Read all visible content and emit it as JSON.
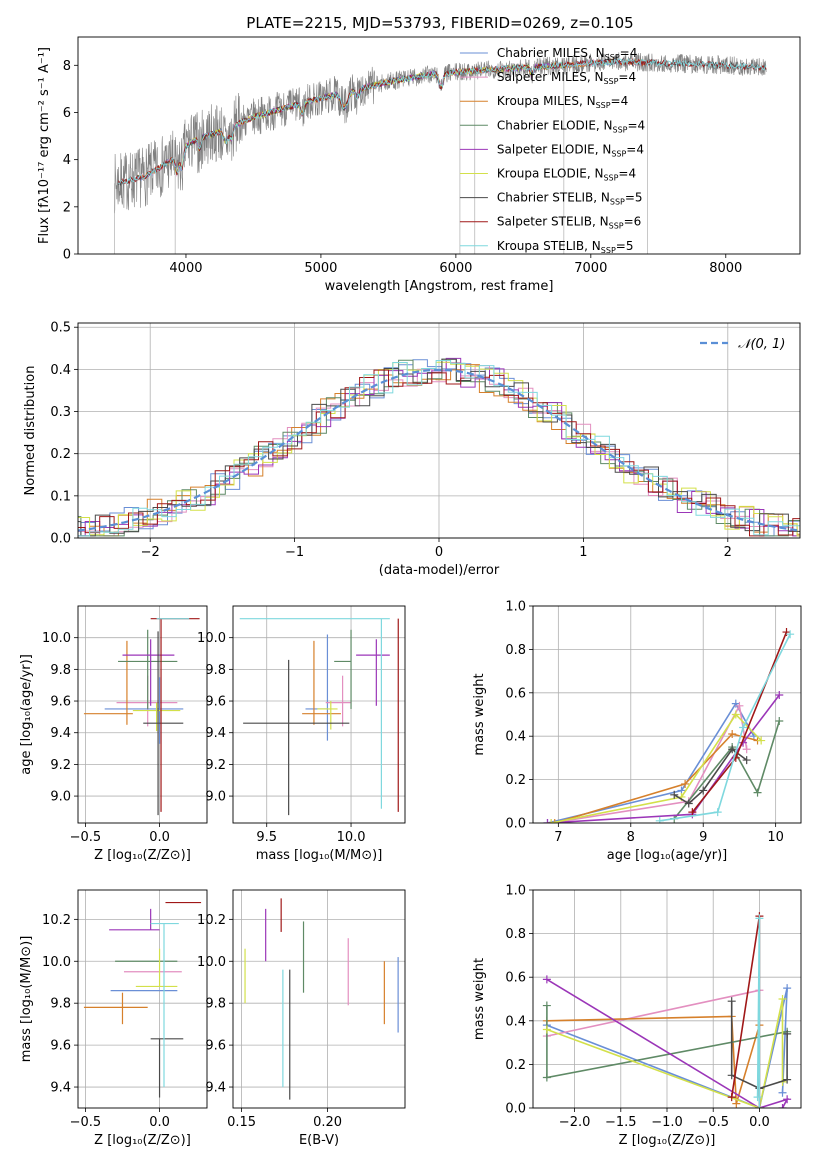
{
  "figure_title": "PLATE=2215, MJD=53793, FIBERID=0269, z=0.105",
  "colors": {
    "Chabrier MILES": "#6a8fd6",
    "Salpeter MILES": "#e38fc0",
    "Kroupa MILES": "#d6802b",
    "Chabrier ELODIE": "#5f8a66",
    "Salpeter ELODIE": "#9b36b8",
    "Kroupa ELODIE": "#d3e04a",
    "Chabrier STELIB": "#4a4a4a",
    "Salpeter STELIB": "#a01818",
    "Kroupa STELIB": "#7fd8de",
    "data": "#808080",
    "normal": "#5a8fd6"
  },
  "chart_data": [
    {
      "id": "spectrum",
      "type": "line",
      "title": "PLATE=2215, MJD=53793, FIBERID=0269, z=0.105",
      "xlabel": "wavelength [Angstrom, rest frame]",
      "ylabel": "Flux [fλ10⁻¹⁷ erg cm⁻² s⁻¹ A⁻¹]",
      "xlim": [
        3200,
        8550
      ],
      "ylim": [
        0,
        9.2
      ],
      "xticks": [
        4000,
        5000,
        6000,
        7000,
        8000
      ],
      "yticks": [
        0,
        2,
        4,
        6,
        8
      ],
      "grid": false,
      "legend_position": "top-right",
      "legend": [
        "Chabrier MILES, NSSP=4",
        "Salpeter MILES, NSSP=4",
        "Kroupa MILES, NSSP=4",
        "Chabrier ELODIE, NSSP=4",
        "Salpeter ELODIE, NSSP=4",
        "Kroupa ELODIE, NSSP=4",
        "Chabrier STELIB, NSSP=5",
        "Salpeter STELIB, NSSP=6",
        "Kroupa STELIB, NSSP=5"
      ],
      "continuum": {
        "x": [
          3500,
          3700,
          3900,
          4000,
          4100,
          4300,
          4500,
          4800,
          5000,
          5200,
          5500,
          5800,
          6000,
          6200,
          6500,
          6800,
          7000,
          7200,
          7500,
          7800,
          8000,
          8300
        ],
        "y": [
          3.0,
          3.3,
          4.0,
          4.6,
          4.9,
          5.3,
          5.8,
          6.3,
          6.6,
          6.9,
          7.3,
          7.6,
          7.7,
          7.8,
          7.9,
          8.0,
          8.1,
          8.15,
          8.1,
          8.05,
          8.0,
          7.9
        ]
      }
    },
    {
      "id": "residuals",
      "type": "histogram",
      "xlabel": "(data-model)/error",
      "ylabel": "Normed distribution",
      "xlim": [
        -2.5,
        2.5
      ],
      "ylim": [
        0,
        0.51
      ],
      "xticks": [
        -2,
        -1,
        0,
        1,
        2
      ],
      "yticks": [
        0.0,
        0.1,
        0.2,
        0.3,
        0.4,
        0.5
      ],
      "grid": true,
      "legend_position": "top-right",
      "legend": [
        "𝒩(0, 1)"
      ],
      "bin_width": 0.1
    },
    {
      "id": "z_age",
      "type": "errorbar",
      "xlabel": "Z [log₁₀(Z/Z⊙)]",
      "ylabel": "age  [log₁₀(age/yr)]",
      "xlim": [
        -0.55,
        0.32
      ],
      "ylim": [
        8.83,
        10.2
      ],
      "xticks": [
        -0.5,
        0.0
      ],
      "yticks": [
        9.0,
        9.2,
        9.4,
        9.6,
        9.8,
        10.0
      ],
      "grid": true,
      "points": [
        {
          "x": -0.08,
          "y": 9.59,
          "xerr": [
            0.21,
            0.2
          ],
          "yerr": [
            0.15,
            0.17
          ],
          "series": "Salpeter MILES"
        },
        {
          "x": 0.0,
          "y": 9.55,
          "xerr": [
            0.37,
            0.16
          ],
          "yerr": [
            0.22,
            0.2
          ],
          "series": "Chabrier MILES"
        },
        {
          "x": -0.22,
          "y": 9.52,
          "xerr": [
            0.29,
            0.04
          ],
          "yerr": [
            0.07,
            0.46
          ],
          "series": "Kroupa MILES"
        },
        {
          "x": -0.08,
          "y": 9.85,
          "xerr": [
            0.2,
            0.2
          ],
          "yerr": [
            0.3,
            0.2
          ],
          "series": "Chabrier ELODIE"
        },
        {
          "x": -0.06,
          "y": 9.89,
          "xerr": [
            0.19,
            0.16
          ],
          "yerr": [
            0.32,
            0.1
          ],
          "series": "Salpeter ELODIE"
        },
        {
          "x": -0.02,
          "y": 9.54,
          "xerr": [
            0.16,
            0.16
          ],
          "yerr": [
            0.13,
            0.05
          ],
          "series": "Kroupa ELODIE"
        },
        {
          "x": -0.01,
          "y": 9.46,
          "xerr": [
            0.1,
            0.17
          ],
          "yerr": [
            0.58,
            0.58
          ],
          "series": "Chabrier STELIB"
        },
        {
          "x": 0.01,
          "y": 10.12,
          "xerr": [
            0.07,
            0.26
          ],
          "yerr": [
            1.22,
            0.0
          ],
          "series": "Salpeter STELIB"
        },
        {
          "x": 0.08,
          "y": 10.12,
          "xerr": [
            0.1,
            0.12
          ],
          "yerr": [
            0.0,
            0.0
          ],
          "series": "Kroupa STELIB"
        }
      ]
    },
    {
      "id": "mass_age",
      "type": "errorbar",
      "xlabel": "mass [log₁₀(M/M⊙)]",
      "ylabel": "",
      "xlim": [
        9.3,
        10.32
      ],
      "ylim": [
        8.83,
        10.2
      ],
      "xticks": [
        9.5,
        10.0
      ],
      "yticks": [
        9.0,
        9.2,
        9.4,
        9.6,
        9.8,
        10.0
      ],
      "grid": true,
      "points": [
        {
          "x": 9.86,
          "y": 9.55,
          "xerr": [
            0.13,
            0.0
          ],
          "yerr": [
            0.2,
            0.47
          ],
          "series": "Chabrier MILES"
        },
        {
          "x": 9.95,
          "y": 9.59,
          "xerr": [
            0.1,
            0.05
          ],
          "yerr": [
            0.15,
            0.17
          ],
          "series": "Salpeter MILES"
        },
        {
          "x": 9.78,
          "y": 9.52,
          "xerr": [
            0.07,
            0.16
          ],
          "yerr": [
            0.07,
            0.46
          ],
          "series": "Kroupa MILES"
        },
        {
          "x": 10.0,
          "y": 9.85,
          "xerr": [
            0.1,
            0.0
          ],
          "yerr": [
            0.3,
            0.2
          ],
          "series": "Chabrier ELODIE"
        },
        {
          "x": 10.15,
          "y": 9.89,
          "xerr": [
            0.12,
            0.08
          ],
          "yerr": [
            0.32,
            0.1
          ],
          "series": "Salpeter ELODIE"
        },
        {
          "x": 9.88,
          "y": 9.55,
          "xerr": [
            0.08,
            0.04
          ],
          "yerr": [
            0.13,
            0.05
          ],
          "series": "Kroupa ELODIE"
        },
        {
          "x": 9.63,
          "y": 9.46,
          "xerr": [
            0.27,
            0.36
          ],
          "yerr": [
            0.58,
            0.4
          ],
          "series": "Chabrier STELIB"
        },
        {
          "x": 10.28,
          "y": 10.12,
          "xerr": [
            0.0,
            0.0
          ],
          "yerr": [
            1.22,
            0.0
          ],
          "series": "Salpeter STELIB"
        },
        {
          "x": 10.18,
          "y": 10.12,
          "xerr": [
            0.84,
            0.05
          ],
          "yerr": [
            1.2,
            0.0
          ],
          "series": "Kroupa STELIB"
        }
      ]
    },
    {
      "id": "age_weight",
      "type": "line",
      "xlabel": "age  [log₁₀(age/yr)]",
      "ylabel": "mass weight",
      "xlim": [
        6.65,
        10.35
      ],
      "ylim": [
        0,
        1.0
      ],
      "xticks": [
        7,
        8,
        9,
        10
      ],
      "yticks": [
        0.0,
        0.2,
        0.4,
        0.6,
        0.8,
        1.0
      ],
      "grid": true,
      "series": [
        {
          "name": "Chabrier MILES",
          "x": [
            6.85,
            8.7,
            9.45,
            9.7
          ],
          "y": [
            0.0,
            0.15,
            0.55,
            0.4
          ]
        },
        {
          "name": "Salpeter MILES",
          "x": [
            6.9,
            8.8,
            9.5,
            9.6
          ],
          "y": [
            0.0,
            0.1,
            0.54,
            0.34
          ]
        },
        {
          "name": "Kroupa MILES",
          "x": [
            6.95,
            8.75,
            9.4,
            9.75
          ],
          "y": [
            0.0,
            0.18,
            0.41,
            0.38
          ]
        },
        {
          "name": "Chabrier ELODIE",
          "x": [
            8.6,
            9.4,
            9.75,
            10.05
          ],
          "y": [
            0.02,
            0.35,
            0.14,
            0.47
          ]
        },
        {
          "name": "Salpeter ELODIE",
          "x": [
            6.85,
            8.85,
            9.55,
            10.05
          ],
          "y": [
            0.0,
            0.04,
            0.37,
            0.59
          ]
        },
        {
          "name": "Kroupa ELODIE",
          "x": [
            6.9,
            8.7,
            9.45,
            9.8
          ],
          "y": [
            0.0,
            0.12,
            0.5,
            0.38
          ]
        },
        {
          "name": "Chabrier STELIB",
          "x": [
            8.6,
            8.8,
            9.0,
            9.4,
            9.6
          ],
          "y": [
            0.13,
            0.09,
            0.15,
            0.34,
            0.29
          ]
        },
        {
          "name": "Salpeter STELIB",
          "x": [
            8.85,
            9.45,
            10.15
          ],
          "y": [
            0.05,
            0.3,
            0.88
          ]
        },
        {
          "name": "Kroupa STELIB",
          "x": [
            8.4,
            9.2,
            9.55,
            10.2
          ],
          "y": [
            0.01,
            0.05,
            0.44,
            0.87
          ]
        }
      ]
    },
    {
      "id": "z_mass",
      "type": "errorbar",
      "xlabel": "Z [log₁₀(Z/Z⊙)]",
      "ylabel": "mass [log₁₀(M/M⊙)]",
      "xlim": [
        -0.55,
        0.32
      ],
      "ylim": [
        9.3,
        10.34
      ],
      "xticks": [
        -0.5,
        0.0
      ],
      "yticks": [
        9.4,
        9.6,
        9.8,
        10.0,
        10.2
      ],
      "grid": true,
      "points": [
        {
          "x": 0.0,
          "y": 9.86,
          "xerr": [
            0.33,
            0.12
          ],
          "yerr": [
            0.0,
            0.0
          ],
          "series": "Chabrier MILES"
        },
        {
          "x": -0.02,
          "y": 9.95,
          "xerr": [
            0.22,
            0.17
          ],
          "yerr": [
            0.0,
            0.0
          ],
          "series": "Salpeter MILES"
        },
        {
          "x": -0.25,
          "y": 9.78,
          "xerr": [
            0.26,
            0.17
          ],
          "yerr": [
            0.08,
            0.07
          ],
          "series": "Kroupa MILES"
        },
        {
          "x": -0.08,
          "y": 10.0,
          "xerr": [
            0.22,
            0.2
          ],
          "yerr": [
            0.0,
            0.0
          ],
          "series": "Chabrier ELODIE"
        },
        {
          "x": -0.06,
          "y": 10.15,
          "xerr": [
            0.28,
            0.06
          ],
          "yerr": [
            0.0,
            0.1
          ],
          "series": "Salpeter ELODIE"
        },
        {
          "x": 0.0,
          "y": 9.88,
          "xerr": [
            0.16,
            0.12
          ],
          "yerr": [
            0.0,
            0.18
          ],
          "series": "Kroupa ELODIE"
        },
        {
          "x": 0.0,
          "y": 9.63,
          "xerr": [
            0.06,
            0.16
          ],
          "yerr": [
            0.28,
            0.0
          ],
          "series": "Chabrier STELIB"
        },
        {
          "x": 0.09,
          "y": 10.28,
          "xerr": [
            0.05,
            0.19
          ],
          "yerr": [
            0.0,
            0.0
          ],
          "series": "Salpeter STELIB"
        },
        {
          "x": 0.03,
          "y": 10.18,
          "xerr": [
            0.09,
            0.1
          ],
          "yerr": [
            0.78,
            0.0
          ],
          "series": "Kroupa STELIB"
        }
      ]
    },
    {
      "id": "ebv_mass",
      "type": "errorbar",
      "xlabel": "E(B-V)",
      "ylabel": "",
      "xlim": [
        0.145,
        0.245
      ],
      "ylim": [
        9.3,
        10.34
      ],
      "xticks": [
        0.15,
        0.2
      ],
      "yticks": [
        9.4,
        9.6,
        9.8,
        10.0,
        10.2
      ],
      "grid": true,
      "points": [
        {
          "x": 0.152,
          "y": 9.93,
          "yerr": [
            0.13,
            0.13
          ],
          "series": "Kroupa ELODIE"
        },
        {
          "x": 0.164,
          "y": 10.12,
          "yerr": [
            0.12,
            0.13
          ],
          "series": "Salpeter ELODIE"
        },
        {
          "x": 0.173,
          "y": 10.14,
          "yerr": [
            0.0,
            0.16
          ],
          "series": "Salpeter STELIB"
        },
        {
          "x": 0.174,
          "y": 9.86,
          "yerr": [
            0.46,
            0.1
          ],
          "series": "Kroupa STELIB"
        },
        {
          "x": 0.178,
          "y": 9.75,
          "yerr": [
            0.41,
            0.21
          ],
          "series": "Chabrier STELIB"
        },
        {
          "x": 0.186,
          "y": 10.05,
          "yerr": [
            0.2,
            0.14
          ],
          "series": "Chabrier ELODIE"
        },
        {
          "x": 0.212,
          "y": 9.95,
          "yerr": [
            0.16,
            0.16
          ],
          "series": "Salpeter MILES"
        },
        {
          "x": 0.233,
          "y": 9.85,
          "yerr": [
            0.15,
            0.15
          ],
          "series": "Kroupa MILES"
        },
        {
          "x": 0.241,
          "y": 9.84,
          "yerr": [
            0.18,
            0.18
          ],
          "series": "Chabrier MILES"
        }
      ]
    },
    {
      "id": "z_weight",
      "type": "line",
      "xlabel": "Z [log₁₀(Z/Z⊙)]",
      "ylabel": "mass weight",
      "xlim": [
        -2.45,
        0.45
      ],
      "ylim": [
        0,
        1.0
      ],
      "xticks": [
        -2.0,
        -1.5,
        -1.0,
        -0.5,
        0.0
      ],
      "yticks": [
        0.0,
        0.2,
        0.4,
        0.6,
        0.8,
        1.0
      ],
      "grid": true,
      "series": [
        {
          "name": "Chabrier MILES",
          "x": [
            -2.3,
            0.0,
            0.3,
            0.25
          ],
          "y": [
            0.38,
            0.0,
            0.55,
            0.07
          ]
        },
        {
          "name": "Salpeter MILES",
          "x": [
            -2.3,
            0.0
          ],
          "y": [
            0.33,
            0.54
          ]
        },
        {
          "name": "Kroupa MILES",
          "x": [
            -2.3,
            -0.3,
            -0.25,
            0.0
          ],
          "y": [
            0.4,
            0.42,
            0.02,
            0.38
          ]
        },
        {
          "name": "Chabrier ELODIE",
          "x": [
            -2.3,
            -2.3,
            0.3
          ],
          "y": [
            0.47,
            0.14,
            0.35
          ]
        },
        {
          "name": "Salpeter ELODIE",
          "x": [
            -2.3,
            0.0,
            0.3,
            0.25
          ],
          "y": [
            0.59,
            0.0,
            0.04,
            0.0
          ]
        },
        {
          "name": "Kroupa ELODIE",
          "x": [
            -2.3,
            0.0,
            0.25,
            0.25
          ],
          "y": [
            0.36,
            0.0,
            0.5,
            0.12
          ]
        },
        {
          "name": "Chabrier STELIB",
          "x": [
            -0.3,
            -0.3,
            0.0,
            0.3,
            0.3
          ],
          "y": [
            0.49,
            0.15,
            0.09,
            0.13,
            0.34
          ]
        },
        {
          "name": "Salpeter STELIB",
          "x": [
            -0.3,
            0.0,
            0.0
          ],
          "y": [
            0.05,
            0.88,
            0.0
          ]
        },
        {
          "name": "Kroupa STELIB",
          "x": [
            0.0,
            0.0,
            -0.02
          ],
          "y": [
            0.0,
            0.87,
            0.05
          ]
        }
      ]
    }
  ]
}
